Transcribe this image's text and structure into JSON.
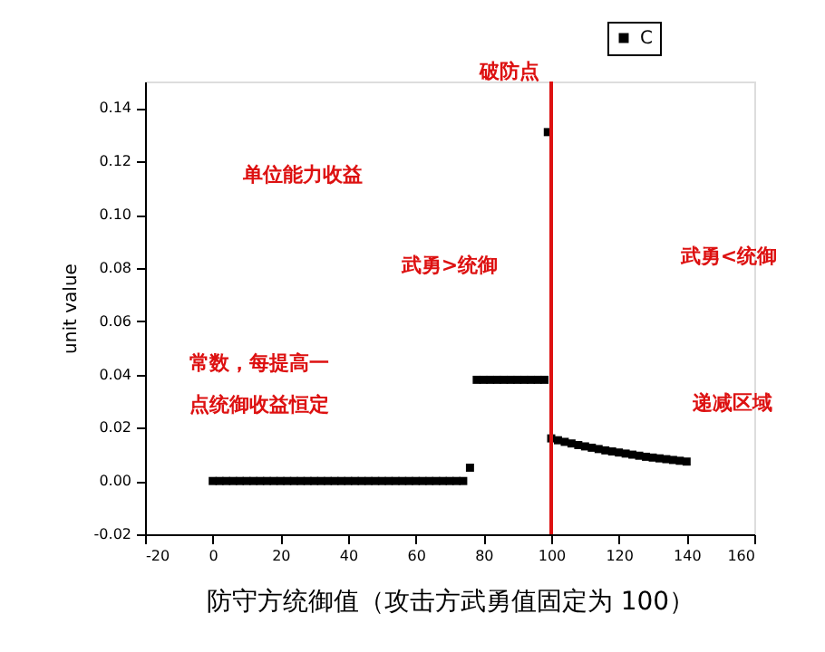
{
  "chart_data": {
    "type": "scatter",
    "xlabel": "防守方统御值（攻击方武勇值固定为 100）",
    "ylabel": "unit value",
    "x": [
      0,
      2,
      4,
      6,
      8,
      10,
      12,
      14,
      16,
      18,
      20,
      22,
      24,
      26,
      28,
      30,
      32,
      34,
      36,
      38,
      40,
      42,
      44,
      46,
      48,
      50,
      52,
      54,
      56,
      58,
      60,
      62,
      64,
      66,
      68,
      70,
      72,
      74,
      76,
      78,
      80,
      82,
      84,
      86,
      88,
      90,
      92,
      94,
      96,
      98,
      99,
      100,
      102,
      104,
      106,
      108,
      110,
      112,
      114,
      116,
      118,
      120,
      122,
      124,
      126,
      128,
      130,
      132,
      134,
      136,
      138,
      140
    ],
    "series": [
      {
        "name": "C",
        "color": "#000000",
        "values": [
          0,
          0,
          0,
          0,
          0,
          0,
          0,
          0,
          0,
          0,
          0,
          0,
          0,
          0,
          0,
          0,
          0,
          0,
          0,
          0,
          0,
          0,
          0,
          0,
          0,
          0,
          0,
          0,
          0,
          0,
          0,
          0,
          0,
          0,
          0,
          0,
          0,
          0,
          0.005,
          0.038,
          0.038,
          0.038,
          0.038,
          0.038,
          0.038,
          0.038,
          0.038,
          0.038,
          0.038,
          0.038,
          0.131,
          0.016,
          0.0153,
          0.0147,
          0.0141,
          0.0135,
          0.013,
          0.0125,
          0.012,
          0.0115,
          0.0111,
          0.0107,
          0.0103,
          0.0099,
          0.0095,
          0.0091,
          0.0088,
          0.0085,
          0.0082,
          0.0079,
          0.0076,
          0.0073
        ]
      }
    ],
    "xlim": [
      -20,
      160
    ],
    "xticks": [
      -20,
      0,
      20,
      40,
      60,
      80,
      100,
      120,
      140,
      160
    ],
    "ylim": [
      -0.02,
      0.15
    ],
    "yticks": [
      -0.02,
      {
        "value": 0,
        "label": "0.00"
      },
      0.02,
      0.04,
      0.06,
      0.08,
      {
        "value": 0.1,
        "label": "0.10"
      },
      0.12,
      0.14
    ],
    "marker": "square",
    "legend": "top right",
    "grid": false,
    "ref_lines": [
      {
        "axis": "x",
        "value": 100,
        "color": "#dd1111"
      }
    ],
    "annotations": [
      "破防点",
      "单位能力收益",
      "武勇>统御",
      "武勇<统御",
      "常数，每提高一",
      "点统御收益恒定",
      "递减区域"
    ]
  }
}
